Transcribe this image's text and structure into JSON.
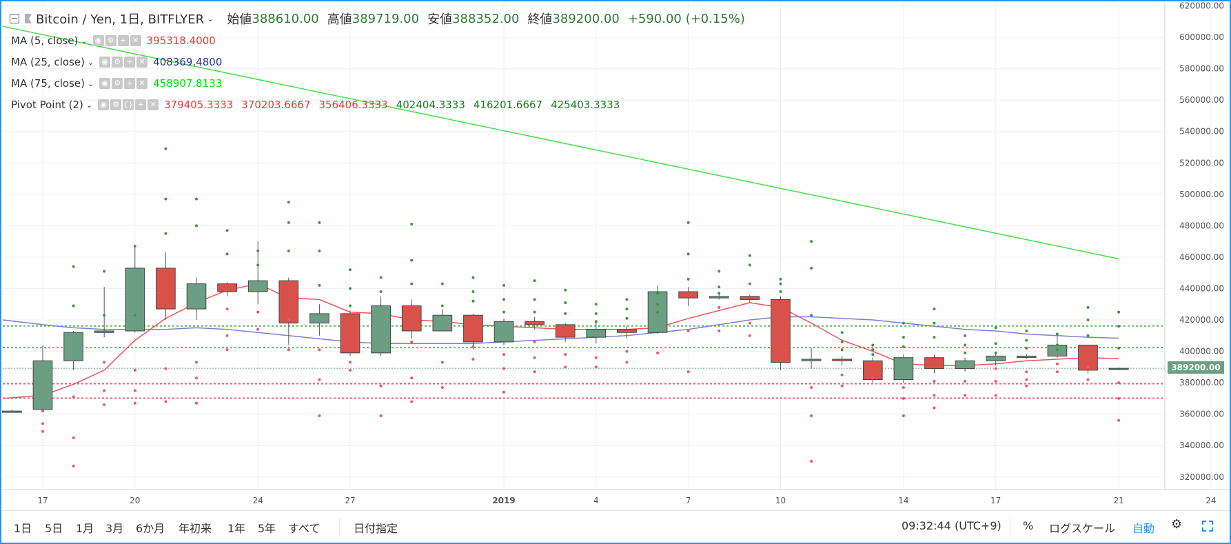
{
  "header": {
    "symbol": "Bitcoin / Yen, 1日, BITFLYER",
    "open_label": "始値",
    "open": "388610.00",
    "high_label": "高値",
    "high": "389719.00",
    "low_label": "安値",
    "low": "388352.00",
    "close_label": "終値",
    "close": "389200.00",
    "change": "+590.00 (+0.15%)"
  },
  "indicators": [
    {
      "label": "MA (5, close)",
      "values": [
        "395318.4000"
      ],
      "colors": [
        "#e53935"
      ]
    },
    {
      "label": "MA (25, close)",
      "values": [
        "408369.4800"
      ],
      "colors": [
        "#283593"
      ]
    },
    {
      "label": "MA (75, close)",
      "values": [
        "458907.8133"
      ],
      "colors": [
        "#00e000"
      ]
    },
    {
      "label": "Pivot Point (2)",
      "values": [
        "379405.3333",
        "370203.6667",
        "356406.3333",
        "402404.3333",
        "416201.6667",
        "425403.3333"
      ],
      "colors": [
        "#e53935",
        "#e53935",
        "#e53935",
        "#1b7a1b",
        "#1b7a1b",
        "#1b7a1b"
      ]
    }
  ],
  "price_tag": "389200.00",
  "bottom": {
    "ranges": [
      "1日",
      "5日",
      "1月",
      "3月",
      "6か月",
      "年初来",
      "1年",
      "5年",
      "すべて"
    ],
    "goto": "日付指定",
    "time": "09:32:44 (UTC+9)",
    "percent": "%",
    "log": "ログスケール",
    "auto": "自動"
  },
  "chart_data": {
    "type": "candlestick",
    "yticks": [
      320000,
      340000,
      360000,
      380000,
      400000,
      420000,
      440000,
      460000,
      480000,
      500000,
      520000,
      540000,
      560000,
      580000,
      600000,
      620000
    ],
    "ytick_labels": [
      "320000.00",
      "340000.00",
      "360000.00",
      "380000.00",
      "400000.00",
      "420000.00",
      "440000.00",
      "460000.00",
      "480000.00",
      "500000.00",
      "520000.00",
      "540000.00",
      "560000.00",
      "580000.00",
      "600000.00",
      "620000.00"
    ],
    "ylim": [
      312000,
      622000
    ],
    "xlim": [
      -1.3,
      36.5
    ],
    "xticks": [
      {
        "i": 0,
        "label": "17"
      },
      {
        "i": 3,
        "label": "20"
      },
      {
        "i": 7,
        "label": "24"
      },
      {
        "i": 10,
        "label": "27"
      },
      {
        "i": 15,
        "label": "2019"
      },
      {
        "i": 18,
        "label": "4"
      },
      {
        "i": 21,
        "label": "7"
      },
      {
        "i": 24,
        "label": "10"
      },
      {
        "i": 28,
        "label": "14"
      },
      {
        "i": 31,
        "label": "17"
      },
      {
        "i": 35,
        "label": "21"
      },
      {
        "i": 38,
        "label": "24"
      }
    ],
    "candles": [
      [
        -1,
        362000,
        362000,
        361000,
        363000
      ],
      [
        0,
        363000,
        394000,
        361000,
        404000
      ],
      [
        1,
        394000,
        412000,
        388000,
        413000
      ],
      [
        2,
        412000,
        413000,
        409000,
        441000
      ],
      [
        3,
        413000,
        453000,
        412000,
        467000
      ],
      [
        4,
        453000,
        427000,
        420000,
        463000
      ],
      [
        5,
        427000,
        443000,
        420000,
        447000
      ],
      [
        6,
        443000,
        438000,
        435000,
        444000
      ],
      [
        7,
        438000,
        445000,
        430000,
        470000
      ],
      [
        8,
        445000,
        418000,
        404000,
        447000
      ],
      [
        9,
        418000,
        424000,
        410000,
        430000
      ],
      [
        10,
        424000,
        399000,
        397000,
        426000
      ],
      [
        11,
        399000,
        429000,
        397000,
        435000
      ],
      [
        12,
        429000,
        413000,
        408000,
        433000
      ],
      [
        13,
        413000,
        423000,
        413000,
        427000
      ],
      [
        14,
        423000,
        406000,
        401000,
        424000
      ],
      [
        15,
        406000,
        419000,
        404000,
        421000
      ],
      [
        16,
        419000,
        417000,
        414000,
        422000
      ],
      [
        17,
        417000,
        409000,
        406000,
        418000
      ],
      [
        18,
        409000,
        414000,
        405000,
        418000
      ],
      [
        19,
        414000,
        412000,
        408000,
        416000
      ],
      [
        20,
        412000,
        438000,
        411000,
        442000
      ],
      [
        21,
        438000,
        434000,
        429000,
        441000
      ],
      [
        22,
        434000,
        435000,
        433000,
        437000
      ],
      [
        23,
        435000,
        433000,
        431000,
        436000
      ],
      [
        24,
        433000,
        393000,
        388000,
        435000
      ],
      [
        25,
        394000,
        395000,
        389000,
        402000
      ],
      [
        26,
        395000,
        394000,
        391000,
        397000
      ],
      [
        27,
        394000,
        382000,
        380000,
        396000
      ],
      [
        28,
        382000,
        396000,
        380000,
        398000
      ],
      [
        29,
        396000,
        389000,
        386000,
        398000
      ],
      [
        30,
        389000,
        394000,
        387000,
        396000
      ],
      [
        31,
        394000,
        397000,
        391000,
        399000
      ],
      [
        32,
        397000,
        397000,
        395000,
        398000
      ],
      [
        33,
        397000,
        404000,
        396000,
        410000
      ],
      [
        34,
        404000,
        388000,
        386000,
        404000
      ],
      [
        35,
        388610,
        389200,
        388352,
        389719
      ]
    ],
    "ma5": [
      [
        -1.3,
        370000
      ],
      [
        0,
        372000
      ],
      [
        1,
        379000
      ],
      [
        2,
        388000
      ],
      [
        3,
        407000
      ],
      [
        4,
        421000
      ],
      [
        5,
        431000
      ],
      [
        6,
        439000
      ],
      [
        7,
        443000
      ],
      [
        8,
        434000
      ],
      [
        9,
        433000
      ],
      [
        10,
        425000
      ],
      [
        11,
        424000
      ],
      [
        12,
        420000
      ],
      [
        13,
        419000
      ],
      [
        14,
        417000
      ],
      [
        15,
        416000
      ],
      [
        16,
        415000
      ],
      [
        17,
        414000
      ],
      [
        18,
        414000
      ],
      [
        19,
        414000
      ],
      [
        20,
        415000
      ],
      [
        21,
        421000
      ],
      [
        22,
        426000
      ],
      [
        23,
        431000
      ],
      [
        24,
        428000
      ],
      [
        25,
        418000
      ],
      [
        26,
        407000
      ],
      [
        27,
        400000
      ],
      [
        28,
        392000
      ],
      [
        29,
        391000
      ],
      [
        30,
        391000
      ],
      [
        31,
        392000
      ],
      [
        32,
        394000
      ],
      [
        33,
        395000
      ],
      [
        34,
        396000
      ],
      [
        35,
        395300
      ]
    ],
    "ma25": [
      [
        -1.3,
        420000
      ],
      [
        0,
        417000
      ],
      [
        1,
        415000
      ],
      [
        2,
        414000
      ],
      [
        3,
        414000
      ],
      [
        4,
        414000
      ],
      [
        5,
        415000
      ],
      [
        6,
        414000
      ],
      [
        7,
        412000
      ],
      [
        8,
        410000
      ],
      [
        9,
        408000
      ],
      [
        10,
        406000
      ],
      [
        11,
        405000
      ],
      [
        12,
        405000
      ],
      [
        13,
        405000
      ],
      [
        14,
        405000
      ],
      [
        15,
        406000
      ],
      [
        16,
        407000
      ],
      [
        17,
        408000
      ],
      [
        18,
        409000
      ],
      [
        19,
        410000
      ],
      [
        20,
        412000
      ],
      [
        21,
        414000
      ],
      [
        22,
        417000
      ],
      [
        23,
        420000
      ],
      [
        24,
        422000
      ],
      [
        25,
        422000
      ],
      [
        26,
        421000
      ],
      [
        27,
        420000
      ],
      [
        28,
        418000
      ],
      [
        29,
        416000
      ],
      [
        30,
        414000
      ],
      [
        31,
        413000
      ],
      [
        32,
        411000
      ],
      [
        33,
        410000
      ],
      [
        34,
        409000
      ],
      [
        35,
        408400
      ]
    ],
    "ma75": [
      [
        -1.3,
        607000
      ],
      [
        35,
        458900
      ]
    ],
    "pivot_lines": {
      "red": [
        379405,
        370204
      ],
      "green": [
        402404,
        416202
      ]
    },
    "pivot_dots_green": [
      [
        1,
        429000
      ],
      [
        1,
        454000
      ],
      [
        2,
        423000
      ],
      [
        2,
        451000
      ],
      [
        3,
        423000
      ],
      [
        3,
        467000
      ],
      [
        4,
        475000
      ],
      [
        4,
        497000
      ],
      [
        4,
        529000
      ],
      [
        5,
        480000
      ],
      [
        5,
        497000
      ],
      [
        6,
        462000
      ],
      [
        6,
        477000
      ],
      [
        7,
        455000
      ],
      [
        7,
        464000
      ],
      [
        8,
        464000
      ],
      [
        8,
        482000
      ],
      [
        8,
        495000
      ],
      [
        9,
        442000
      ],
      [
        9,
        464000
      ],
      [
        9,
        482000
      ],
      [
        10,
        429000
      ],
      [
        10,
        440000
      ],
      [
        10,
        452000
      ],
      [
        11,
        438000
      ],
      [
        11,
        447000
      ],
      [
        12,
        443000
      ],
      [
        12,
        458000
      ],
      [
        12,
        481000
      ],
      [
        13,
        429000
      ],
      [
        13,
        443000
      ],
      [
        14,
        432000
      ],
      [
        14,
        438000
      ],
      [
        14,
        447000
      ],
      [
        15,
        425000
      ],
      [
        15,
        433000
      ],
      [
        15,
        442000
      ],
      [
        16,
        425000
      ],
      [
        16,
        433000
      ],
      [
        16,
        445000
      ],
      [
        17,
        424000
      ],
      [
        17,
        431000
      ],
      [
        17,
        439000
      ],
      [
        18,
        419000
      ],
      [
        18,
        424000
      ],
      [
        18,
        430000
      ],
      [
        19,
        421000
      ],
      [
        19,
        427000
      ],
      [
        19,
        433000
      ],
      [
        20,
        425000
      ],
      [
        20,
        430000
      ],
      [
        20,
        437000
      ],
      [
        21,
        446000
      ],
      [
        21,
        462000
      ],
      [
        21,
        482000
      ],
      [
        22,
        437000
      ],
      [
        22,
        441000
      ],
      [
        22,
        451000
      ],
      [
        23,
        443000
      ],
      [
        23,
        455000
      ],
      [
        23,
        461000
      ],
      [
        24,
        438000
      ],
      [
        24,
        443000
      ],
      [
        24,
        446000
      ],
      [
        25,
        423000
      ],
      [
        25,
        453000
      ],
      [
        25,
        470000
      ],
      [
        26,
        401000
      ],
      [
        26,
        406000
      ],
      [
        26,
        412000
      ],
      [
        27,
        398000
      ],
      [
        27,
        401000
      ],
      [
        27,
        404000
      ],
      [
        28,
        403000
      ],
      [
        28,
        409000
      ],
      [
        28,
        418000
      ],
      [
        29,
        409000
      ],
      [
        29,
        418000
      ],
      [
        29,
        427000
      ],
      [
        30,
        399000
      ],
      [
        30,
        404000
      ],
      [
        30,
        410000
      ],
      [
        31,
        399000
      ],
      [
        31,
        405000
      ],
      [
        31,
        415000
      ],
      [
        32,
        402000
      ],
      [
        32,
        407000
      ],
      [
        32,
        413000
      ],
      [
        33,
        401000
      ],
      [
        33,
        404000
      ],
      [
        33,
        411000
      ],
      [
        34,
        410000
      ],
      [
        34,
        420000
      ],
      [
        34,
        428000
      ],
      [
        35,
        402000
      ],
      [
        35,
        416000
      ],
      [
        35,
        425000
      ]
    ],
    "pivot_dots_red": [
      [
        0,
        349000
      ],
      [
        0,
        354000
      ],
      [
        0,
        362000
      ],
      [
        1,
        327000
      ],
      [
        1,
        345000
      ],
      [
        1,
        371000
      ],
      [
        2,
        366000
      ],
      [
        2,
        375000
      ],
      [
        2,
        393000
      ],
      [
        3,
        367000
      ],
      [
        3,
        375000
      ],
      [
        3,
        388000
      ],
      [
        4,
        368000
      ],
      [
        4,
        389000
      ],
      [
        5,
        367000
      ],
      [
        5,
        383000
      ],
      [
        5,
        393000
      ],
      [
        6,
        401000
      ],
      [
        6,
        410000
      ],
      [
        6,
        427000
      ],
      [
        7,
        414000
      ],
      [
        7,
        425000
      ],
      [
        8,
        401000
      ],
      [
        8,
        420000
      ],
      [
        9,
        359000
      ],
      [
        9,
        382000
      ],
      [
        9,
        401000
      ],
      [
        10,
        388000
      ],
      [
        10,
        393000
      ],
      [
        11,
        359000
      ],
      [
        11,
        378000
      ],
      [
        12,
        368000
      ],
      [
        12,
        383000
      ],
      [
        12,
        406000
      ],
      [
        13,
        377000
      ],
      [
        13,
        393000
      ],
      [
        14,
        395000
      ],
      [
        14,
        403000
      ],
      [
        15,
        374000
      ],
      [
        15,
        389000
      ],
      [
        15,
        398000
      ],
      [
        16,
        387000
      ],
      [
        16,
        396000
      ],
      [
        16,
        406000
      ],
      [
        17,
        390000
      ],
      [
        17,
        398000
      ],
      [
        18,
        390000
      ],
      [
        18,
        396000
      ],
      [
        19,
        393000
      ],
      [
        19,
        400000
      ],
      [
        20,
        399000
      ],
      [
        21,
        387000
      ],
      [
        21,
        413000
      ],
      [
        22,
        413000
      ],
      [
        22,
        428000
      ],
      [
        23,
        410000
      ],
      [
        23,
        418000
      ],
      [
        25,
        330000
      ],
      [
        25,
        359000
      ],
      [
        25,
        377000
      ],
      [
        26,
        378000
      ],
      [
        26,
        385000
      ],
      [
        27,
        383000
      ],
      [
        28,
        359000
      ],
      [
        28,
        370000
      ],
      [
        28,
        377000
      ],
      [
        29,
        364000
      ],
      [
        29,
        372000
      ],
      [
        29,
        381000
      ],
      [
        30,
        372000
      ],
      [
        30,
        381000
      ],
      [
        31,
        372000
      ],
      [
        31,
        381000
      ],
      [
        31,
        389000
      ],
      [
        32,
        378000
      ],
      [
        32,
        382000
      ],
      [
        32,
        387000
      ],
      [
        33,
        387000
      ],
      [
        33,
        392000
      ],
      [
        34,
        382000
      ],
      [
        34,
        390000
      ],
      [
        35,
        356000
      ],
      [
        35,
        370000
      ],
      [
        35,
        380000
      ]
    ]
  }
}
